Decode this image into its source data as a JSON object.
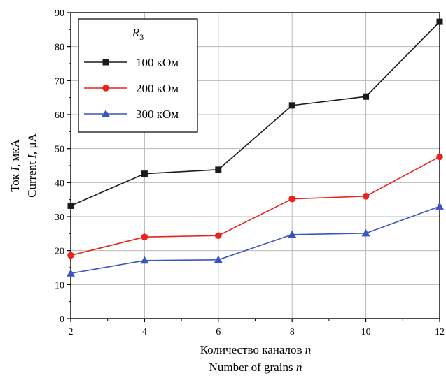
{
  "chart_data": {
    "type": "line",
    "x": [
      2,
      4,
      6,
      8,
      10,
      12
    ],
    "xlim": [
      2,
      12
    ],
    "ylim": [
      0,
      90
    ],
    "xticks": [
      2,
      4,
      6,
      8,
      10,
      12
    ],
    "yticks": [
      0,
      10,
      20,
      30,
      40,
      50,
      60,
      70,
      80,
      90
    ],
    "grid": true,
    "xlabel_ru": {
      "text": "Количество каналов ",
      "var": "n"
    },
    "xlabel_en": {
      "text": "Number of grains ",
      "var": "n"
    },
    "ylabel_ru": {
      "text": "Ток ",
      "var": "I",
      "unit": ", мкА"
    },
    "ylabel_en": {
      "text": "Current ",
      "var": "I",
      "unit": ", μA"
    },
    "legend": {
      "title_var": "R",
      "title_sub": "3",
      "placement": "top-left"
    },
    "series": [
      {
        "name": "100 кОм",
        "color": "#1a1a1a",
        "marker": "square",
        "values": [
          33.2,
          42.6,
          43.8,
          62.7,
          65.3,
          87.3
        ]
      },
      {
        "name": "200 кОм",
        "color": "#e8241c",
        "marker": "circle",
        "values": [
          18.6,
          24.0,
          24.4,
          35.2,
          36.0,
          47.6
        ]
      },
      {
        "name": "300 кОм",
        "color": "#3b54c4",
        "marker": "triangle",
        "values": [
          13.3,
          17.1,
          17.3,
          24.7,
          25.1,
          33.0
        ]
      }
    ]
  }
}
